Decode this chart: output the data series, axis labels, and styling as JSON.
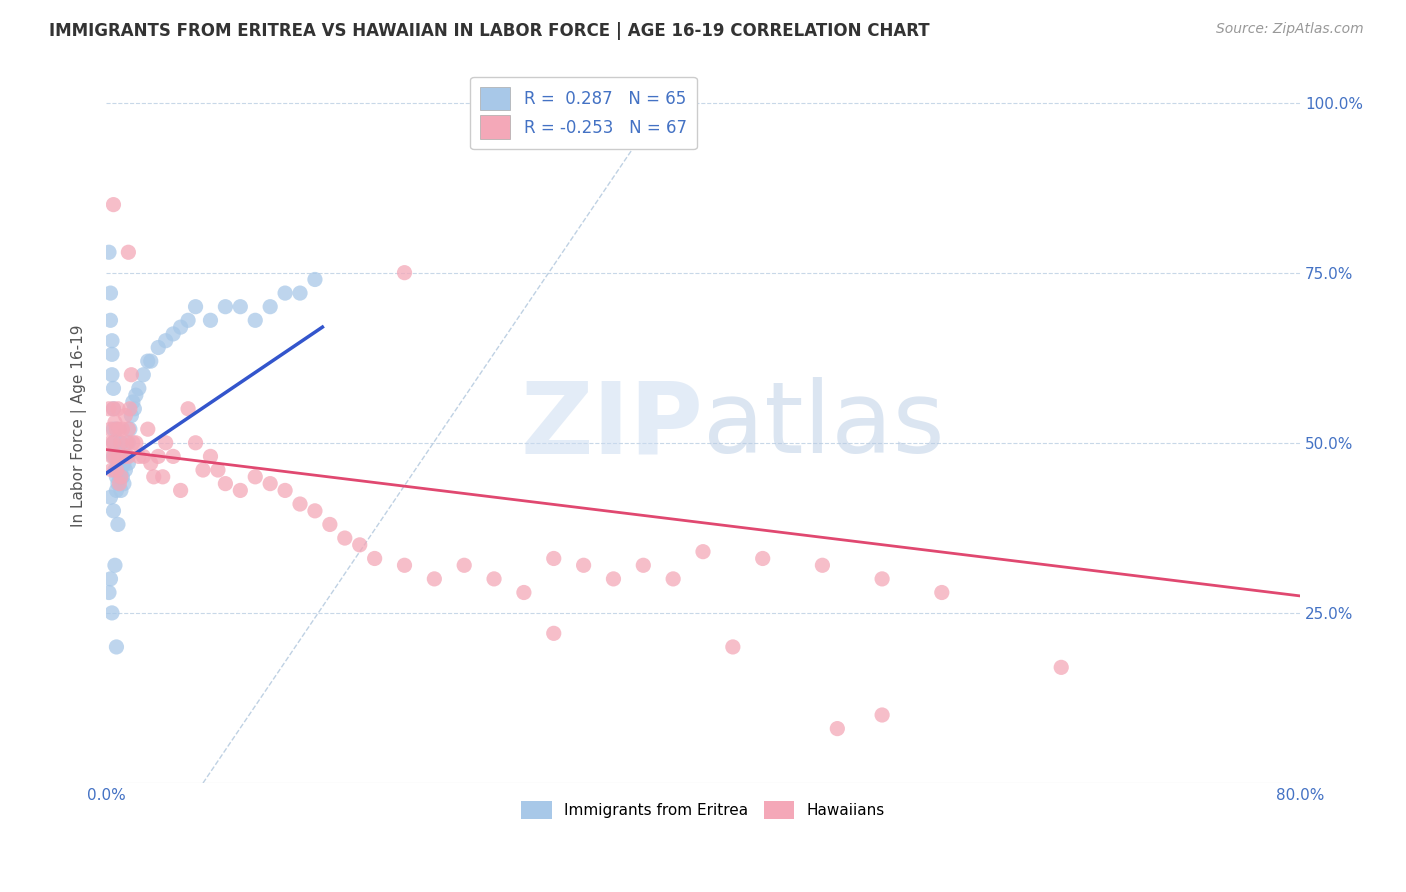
{
  "title": "IMMIGRANTS FROM ERITREA VS HAWAIIAN IN LABOR FORCE | AGE 16-19 CORRELATION CHART",
  "source": "Source: ZipAtlas.com",
  "ylabel": "In Labor Force | Age 16-19",
  "xlim": [
    0.0,
    0.8
  ],
  "ylim": [
    0.0,
    1.05
  ],
  "yticks": [
    0.25,
    0.5,
    0.75,
    1.0
  ],
  "ytick_labels": [
    "25.0%",
    "50.0%",
    "75.0%",
    "100.0%"
  ],
  "xtick_labels_left": "0.0%",
  "xtick_labels_right": "80.0%",
  "color_blue": "#a8c8e8",
  "color_pink": "#f4a8b8",
  "line_blue": "#3355cc",
  "line_pink": "#e04870",
  "line_dashed_color": "#b8cce0",
  "blue_scatter_x": [
    0.002,
    0.003,
    0.003,
    0.004,
    0.004,
    0.004,
    0.005,
    0.005,
    0.005,
    0.005,
    0.005,
    0.006,
    0.006,
    0.007,
    0.007,
    0.007,
    0.007,
    0.008,
    0.008,
    0.008,
    0.009,
    0.009,
    0.01,
    0.01,
    0.01,
    0.01,
    0.011,
    0.011,
    0.012,
    0.012,
    0.013,
    0.014,
    0.015,
    0.015,
    0.016,
    0.017,
    0.018,
    0.019,
    0.02,
    0.022,
    0.025,
    0.028,
    0.03,
    0.035,
    0.04,
    0.045,
    0.05,
    0.055,
    0.06,
    0.07,
    0.08,
    0.09,
    0.1,
    0.11,
    0.12,
    0.13,
    0.14,
    0.003,
    0.005,
    0.008,
    0.002,
    0.003,
    0.006,
    0.004,
    0.007
  ],
  "blue_scatter_y": [
    0.78,
    0.72,
    0.68,
    0.65,
    0.63,
    0.6,
    0.58,
    0.55,
    0.52,
    0.5,
    0.48,
    0.46,
    0.5,
    0.52,
    0.48,
    0.45,
    0.43,
    0.5,
    0.47,
    0.44,
    0.48,
    0.45,
    0.5,
    0.48,
    0.46,
    0.43,
    0.48,
    0.45,
    0.47,
    0.44,
    0.46,
    0.48,
    0.5,
    0.47,
    0.52,
    0.54,
    0.56,
    0.55,
    0.57,
    0.58,
    0.6,
    0.62,
    0.62,
    0.64,
    0.65,
    0.66,
    0.67,
    0.68,
    0.7,
    0.68,
    0.7,
    0.7,
    0.68,
    0.7,
    0.72,
    0.72,
    0.74,
    0.42,
    0.4,
    0.38,
    0.28,
    0.3,
    0.32,
    0.25,
    0.2
  ],
  "pink_scatter_x": [
    0.002,
    0.003,
    0.003,
    0.004,
    0.004,
    0.005,
    0.005,
    0.006,
    0.006,
    0.007,
    0.007,
    0.008,
    0.008,
    0.009,
    0.009,
    0.01,
    0.01,
    0.011,
    0.012,
    0.013,
    0.014,
    0.015,
    0.015,
    0.016,
    0.017,
    0.018,
    0.02,
    0.022,
    0.025,
    0.028,
    0.03,
    0.032,
    0.035,
    0.038,
    0.04,
    0.045,
    0.05,
    0.055,
    0.06,
    0.065,
    0.07,
    0.075,
    0.08,
    0.09,
    0.1,
    0.11,
    0.12,
    0.13,
    0.14,
    0.15,
    0.16,
    0.17,
    0.18,
    0.2,
    0.22,
    0.24,
    0.26,
    0.28,
    0.3,
    0.32,
    0.34,
    0.36,
    0.38,
    0.4,
    0.44,
    0.48,
    0.52
  ],
  "pink_scatter_y": [
    0.55,
    0.52,
    0.5,
    0.48,
    0.46,
    0.55,
    0.5,
    0.53,
    0.48,
    0.52,
    0.46,
    0.55,
    0.48,
    0.52,
    0.44,
    0.5,
    0.45,
    0.52,
    0.48,
    0.54,
    0.5,
    0.52,
    0.48,
    0.55,
    0.6,
    0.5,
    0.5,
    0.48,
    0.48,
    0.52,
    0.47,
    0.45,
    0.48,
    0.45,
    0.5,
    0.48,
    0.43,
    0.55,
    0.5,
    0.46,
    0.48,
    0.46,
    0.44,
    0.43,
    0.45,
    0.44,
    0.43,
    0.41,
    0.4,
    0.38,
    0.36,
    0.35,
    0.33,
    0.32,
    0.3,
    0.32,
    0.3,
    0.28,
    0.33,
    0.32,
    0.3,
    0.32,
    0.3,
    0.34,
    0.33,
    0.32,
    0.3
  ],
  "pink_outliers_x": [
    0.005,
    0.015,
    0.2,
    0.3,
    0.42,
    0.49,
    0.52,
    0.56,
    0.64
  ],
  "pink_outliers_y": [
    0.85,
    0.78,
    0.75,
    0.22,
    0.2,
    0.08,
    0.1,
    0.28,
    0.17
  ],
  "blue_line_x": [
    0.0,
    0.145
  ],
  "blue_line_y": [
    0.455,
    0.67
  ],
  "pink_line_x": [
    0.0,
    0.8
  ],
  "pink_line_y": [
    0.49,
    0.275
  ],
  "dashed_line_x": [
    0.065,
    0.38
  ],
  "dashed_line_y": [
    0.0,
    1.02
  ],
  "title_fontsize": 12,
  "axis_label_fontsize": 11,
  "tick_fontsize": 11,
  "source_fontsize": 10,
  "legend_fontsize": 12
}
